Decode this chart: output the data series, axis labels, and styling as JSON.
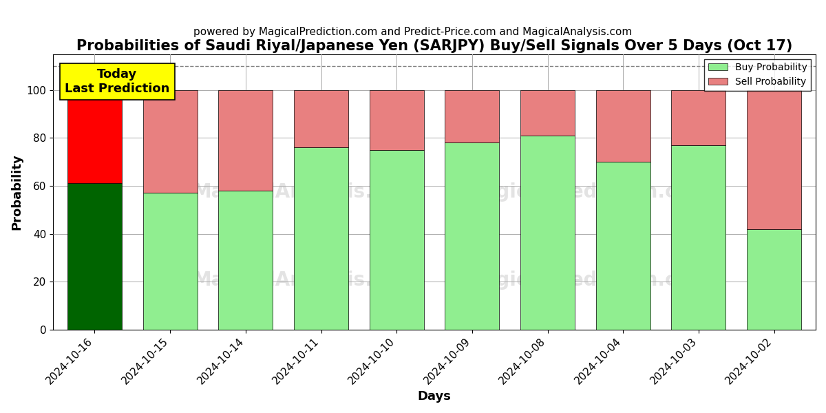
{
  "title": "Probabilities of Saudi Riyal/Japanese Yen (SARJPY) Buy/Sell Signals Over 5 Days (Oct 17)",
  "subtitle": "powered by MagicalPrediction.com and Predict-Price.com and MagicalAnalysis.com",
  "xlabel": "Days",
  "ylabel": "Probability",
  "categories": [
    "2024-10-16",
    "2024-10-15",
    "2024-10-14",
    "2024-10-11",
    "2024-10-10",
    "2024-10-09",
    "2024-10-08",
    "2024-10-04",
    "2024-10-03",
    "2024-10-02"
  ],
  "buy_values": [
    61,
    57,
    58,
    76,
    75,
    78,
    81,
    70,
    77,
    42
  ],
  "sell_values": [
    39,
    43,
    42,
    24,
    25,
    22,
    19,
    30,
    23,
    58
  ],
  "today_buy_color": "#006400",
  "today_sell_color": "#ff0000",
  "buy_color": "#90ee90",
  "sell_color": "#e88080",
  "today_index": 0,
  "today_label": "Today\nLast Prediction",
  "ylim": [
    0,
    115
  ],
  "yticks": [
    0,
    20,
    40,
    60,
    80,
    100
  ],
  "dashed_line_y": 110,
  "legend_buy": "Buy Probability",
  "legend_sell": "Sell Probability",
  "bg_color": "#ffffff",
  "grid_color": "#aaaaaa",
  "title_fontsize": 15,
  "subtitle_fontsize": 11,
  "axis_label_fontsize": 13,
  "tick_fontsize": 11,
  "bar_width": 0.72
}
